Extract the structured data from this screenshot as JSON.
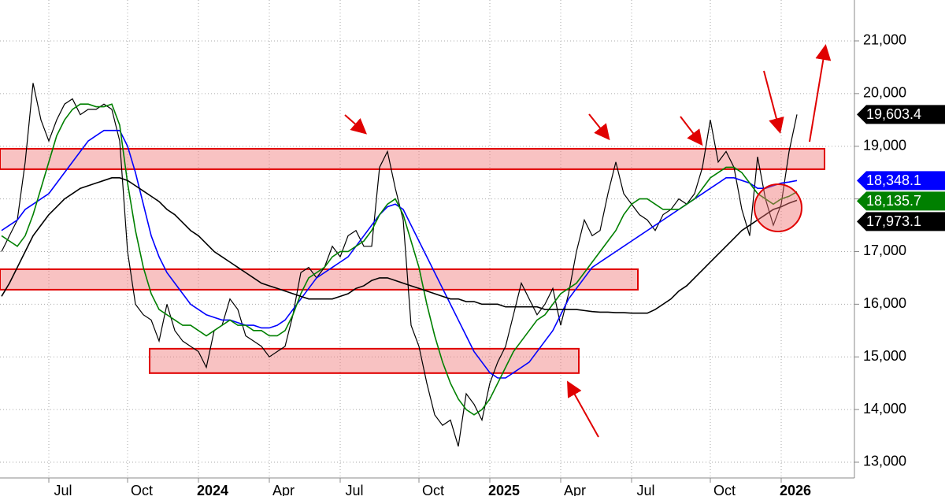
{
  "chart_data": {
    "type": "line",
    "categories": [
      null,
      null,
      null,
      null,
      null,
      null,
      "Jul",
      null,
      null,
      null,
      null,
      null,
      null,
      null,
      null,
      null,
      "Oct",
      null,
      null,
      null,
      null,
      null,
      null,
      null,
      null,
      "2024",
      null,
      null,
      null,
      null,
      null,
      null,
      null,
      null,
      "Apr",
      null,
      null,
      null,
      null,
      null,
      null,
      null,
      null,
      "Jul",
      null,
      null,
      null,
      null,
      null,
      null,
      null,
      null,
      null,
      "Oct",
      null,
      null,
      null,
      null,
      null,
      null,
      null,
      null,
      "2025",
      null,
      null,
      null,
      null,
      null,
      null,
      null,
      null,
      "Apr",
      null,
      null,
      null,
      null,
      null,
      null,
      null,
      null,
      "Jul",
      null,
      null,
      null,
      null,
      null,
      null,
      null,
      null,
      null,
      "Oct",
      null,
      null,
      null,
      null,
      null,
      null,
      null,
      null,
      "2026",
      null,
      null
    ],
    "ylim": [
      12357,
      21777
    ],
    "yticks": [
      {
        "value": 13000,
        "label": "13,000"
      },
      {
        "value": 14000,
        "label": "14,000"
      },
      {
        "value": 15000,
        "label": "15,000"
      },
      {
        "value": 16000,
        "label": "16,000"
      },
      {
        "value": 17000,
        "label": "17,000"
      },
      {
        "value": 18000,
        "label": "18,000"
      },
      {
        "value": 19000,
        "label": "19,000"
      },
      {
        "value": 20000,
        "label": "20,000"
      },
      {
        "value": 21000,
        "label": "21,000"
      }
    ],
    "grid": true,
    "zones": [
      [
        18564,
        18952
      ],
      [
        16276,
        16665
      ],
      [
        14692,
        15155
      ]
    ],
    "zone_color": "#e00000",
    "series": [
      {
        "color": "#000000",
        "values": [
          17000,
          17300,
          17600,
          18700,
          20200,
          19500,
          19100,
          19500,
          19800,
          19900,
          19600,
          19700,
          19700,
          19800,
          19700,
          19100,
          17000,
          16000,
          15800,
          15700,
          15300,
          16000,
          15500,
          15300,
          15200,
          15100,
          14800,
          15500,
          15600,
          16100,
          15900,
          15400,
          15300,
          15200,
          15000,
          15100,
          15200,
          15800,
          16600,
          16700,
          16500,
          16700,
          17100,
          16900,
          17300,
          17400,
          17100,
          17100,
          18600,
          18900,
          18200,
          17600,
          15600,
          15200,
          14500,
          13900,
          13700,
          13800,
          13300,
          14300,
          14100,
          13800,
          14500,
          14900,
          15200,
          15800,
          16400,
          16100,
          15800,
          16000,
          16300,
          15600,
          16200,
          17000,
          17600,
          17300,
          17400,
          18100,
          18700,
          18100,
          17900,
          17700,
          17600,
          17400,
          17700,
          17800,
          18000,
          17900,
          18100,
          18600,
          19500,
          18700,
          18900,
          18600,
          17800,
          17300,
          18800,
          18000,
          17500,
          17900,
          18900,
          19603.4
        ],
        "value_labels": [
          null,
          null,
          null,
          null,
          null,
          null,
          null,
          null,
          null,
          null,
          null,
          null,
          null,
          null,
          null,
          null,
          null,
          null,
          null,
          null,
          null,
          null,
          null,
          null,
          null,
          null,
          null,
          null,
          null,
          null,
          null,
          null,
          null,
          null,
          null,
          null,
          null,
          null,
          null,
          null,
          null,
          null,
          null,
          null,
          null,
          null,
          null,
          null,
          null,
          null,
          null,
          null,
          null,
          null,
          null,
          null,
          null,
          null,
          null,
          null,
          null,
          null,
          null,
          null,
          null,
          null,
          null,
          null,
          null,
          null,
          null,
          null,
          null,
          null,
          null,
          null,
          null,
          null,
          null,
          null,
          null,
          null,
          null,
          null,
          null,
          null,
          null,
          null,
          null,
          null,
          null,
          null,
          null,
          null,
          null,
          null,
          null,
          null,
          null,
          null,
          null,
          "19,603.4"
        ]
      },
      {
        "color": "#0000ff",
        "values": [
          17400,
          17500,
          17600,
          17800,
          17900,
          18000,
          18100,
          18300,
          18500,
          18700,
          18900,
          19100,
          19200,
          19300,
          19300,
          19300,
          19000,
          18500,
          17900,
          17300,
          16900,
          16600,
          16400,
          16200,
          16000,
          15900,
          15800,
          15750,
          15700,
          15700,
          15650,
          15600,
          15600,
          15550,
          15550,
          15600,
          15700,
          15900,
          16100,
          16300,
          16500,
          16600,
          16700,
          16800,
          16900,
          17100,
          17300,
          17500,
          17700,
          17850,
          17900,
          17800,
          17500,
          17200,
          16900,
          16600,
          16300,
          16000,
          15700,
          15400,
          15100,
          14900,
          14700,
          14600,
          14600,
          14700,
          14800,
          14900,
          15100,
          15300,
          15500,
          15800,
          16100,
          16300,
          16500,
          16700,
          16800,
          16900,
          17000,
          17100,
          17200,
          17300,
          17400,
          17500,
          17600,
          17700,
          17800,
          17900,
          18000,
          18100,
          18200,
          18300,
          18400,
          18400,
          18350,
          18300,
          18200,
          18200,
          18250,
          18300,
          18320,
          18348.1
        ],
        "value_labels": [
          null,
          null,
          null,
          null,
          null,
          null,
          null,
          null,
          null,
          null,
          null,
          null,
          null,
          null,
          null,
          null,
          null,
          null,
          null,
          null,
          null,
          null,
          null,
          null,
          null,
          null,
          null,
          null,
          null,
          null,
          null,
          null,
          null,
          null,
          null,
          null,
          null,
          null,
          null,
          null,
          null,
          null,
          null,
          null,
          null,
          null,
          null,
          null,
          null,
          null,
          null,
          null,
          null,
          null,
          null,
          null,
          null,
          null,
          null,
          null,
          null,
          null,
          null,
          null,
          null,
          null,
          null,
          null,
          null,
          null,
          null,
          null,
          null,
          null,
          null,
          null,
          null,
          null,
          null,
          null,
          null,
          null,
          null,
          null,
          null,
          null,
          null,
          null,
          null,
          null,
          null,
          null,
          null,
          null,
          null,
          null,
          null,
          null,
          null,
          null,
          null,
          "18,348.1"
        ]
      },
      {
        "color": "#008000",
        "values": [
          17300,
          17200,
          17100,
          17300,
          17700,
          18200,
          18700,
          19200,
          19500,
          19700,
          19800,
          19800,
          19750,
          19750,
          19800,
          19400,
          18300,
          17400,
          16700,
          16200,
          15900,
          15800,
          15700,
          15600,
          15600,
          15500,
          15400,
          15500,
          15600,
          15700,
          15600,
          15600,
          15500,
          15500,
          15400,
          15400,
          15500,
          15800,
          16200,
          16500,
          16600,
          16700,
          16900,
          17000,
          17000,
          17100,
          17200,
          17400,
          17700,
          17900,
          18000,
          17700,
          17200,
          16700,
          16000,
          15400,
          14900,
          14500,
          14200,
          14000,
          13900,
          14000,
          14200,
          14500,
          14800,
          15100,
          15300,
          15500,
          15700,
          15800,
          16000,
          16200,
          16300,
          16400,
          16600,
          16800,
          17000,
          17200,
          17400,
          17700,
          17900,
          18000,
          18000,
          17900,
          17800,
          17800,
          17800,
          17900,
          18000,
          18200,
          18400,
          18500,
          18600,
          18600,
          18500,
          18300,
          18100,
          18000,
          17900,
          18000,
          18050,
          18135.7
        ],
        "value_labels": [
          null,
          null,
          null,
          null,
          null,
          null,
          null,
          null,
          null,
          null,
          null,
          null,
          null,
          null,
          null,
          null,
          null,
          null,
          null,
          null,
          null,
          null,
          null,
          null,
          null,
          null,
          null,
          null,
          null,
          null,
          null,
          null,
          null,
          null,
          null,
          null,
          null,
          null,
          null,
          null,
          null,
          null,
          null,
          null,
          null,
          null,
          null,
          null,
          null,
          null,
          null,
          null,
          null,
          null,
          null,
          null,
          null,
          null,
          null,
          null,
          null,
          null,
          null,
          null,
          null,
          null,
          null,
          null,
          null,
          null,
          null,
          null,
          null,
          null,
          null,
          null,
          null,
          null,
          null,
          null,
          null,
          null,
          null,
          null,
          null,
          null,
          null,
          null,
          null,
          null,
          null,
          null,
          null,
          null,
          null,
          null,
          null,
          null,
          null,
          null,
          null,
          "18,135.7"
        ]
      },
      {
        "color": "#000000",
        "values": [
          16150,
          16400,
          16700,
          17000,
          17300,
          17500,
          17700,
          17850,
          18000,
          18100,
          18200,
          18250,
          18300,
          18350,
          18400,
          18400,
          18350,
          18250,
          18150,
          18050,
          17950,
          17800,
          17700,
          17550,
          17400,
          17300,
          17150,
          17000,
          16900,
          16800,
          16700,
          16600,
          16500,
          16400,
          16350,
          16300,
          16250,
          16200,
          16150,
          16100,
          16100,
          16100,
          16100,
          16150,
          16200,
          16300,
          16350,
          16450,
          16500,
          16500,
          16450,
          16400,
          16350,
          16300,
          16250,
          16200,
          16150,
          16100,
          16100,
          16050,
          16050,
          16000,
          16000,
          16000,
          15950,
          15950,
          15950,
          15950,
          15950,
          15900,
          15900,
          15900,
          15900,
          15900,
          15880,
          15860,
          15850,
          15850,
          15840,
          15840,
          15830,
          15830,
          15830,
          15900,
          16000,
          16100,
          16250,
          16350,
          16500,
          16650,
          16800,
          16950,
          17100,
          17250,
          17400,
          17500,
          17600,
          17700,
          17800,
          17850,
          17920,
          17973.1
        ],
        "value_labels": [
          null,
          null,
          null,
          null,
          null,
          null,
          null,
          null,
          null,
          null,
          null,
          null,
          null,
          null,
          null,
          null,
          null,
          null,
          null,
          null,
          null,
          null,
          null,
          null,
          null,
          null,
          null,
          null,
          null,
          null,
          null,
          null,
          null,
          null,
          null,
          null,
          null,
          null,
          null,
          null,
          null,
          null,
          null,
          null,
          null,
          null,
          null,
          null,
          null,
          null,
          null,
          null,
          null,
          null,
          null,
          null,
          null,
          null,
          null,
          null,
          null,
          null,
          null,
          null,
          null,
          null,
          null,
          null,
          null,
          null,
          null,
          null,
          null,
          null,
          null,
          null,
          null,
          null,
          null,
          null,
          null,
          null,
          null,
          null,
          null,
          null,
          null,
          null,
          null,
          null,
          null,
          null,
          null,
          null,
          null,
          null,
          null,
          null,
          null,
          null,
          null,
          "17,973.1"
        ]
      }
    ]
  }
}
